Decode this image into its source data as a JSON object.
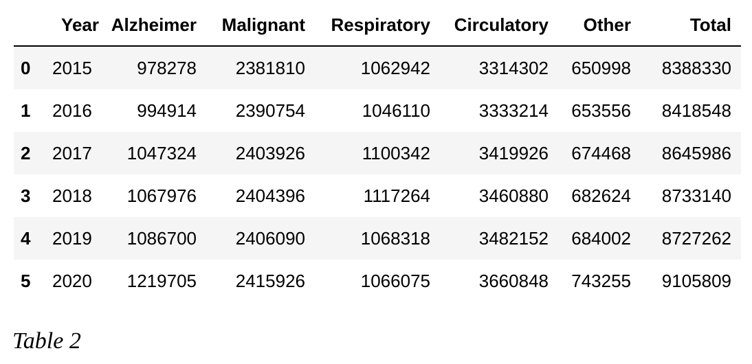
{
  "table": {
    "columns": [
      "",
      "Year",
      "Alzheimer",
      "Malignant",
      "Respiratory",
      "Circulatory",
      "Other",
      "Total"
    ],
    "rows": [
      {
        "index": "0",
        "year": "2015",
        "alzheimer": "978278",
        "malignant": "2381810",
        "respiratory": "1062942",
        "circulatory": "3314302",
        "other": "650998",
        "total": "8388330"
      },
      {
        "index": "1",
        "year": "2016",
        "alzheimer": "994914",
        "malignant": "2390754",
        "respiratory": "1046110",
        "circulatory": "3333214",
        "other": "653556",
        "total": "8418548"
      },
      {
        "index": "2",
        "year": "2017",
        "alzheimer": "1047324",
        "malignant": "2403926",
        "respiratory": "1100342",
        "circulatory": "3419926",
        "other": "674468",
        "total": "8645986"
      },
      {
        "index": "3",
        "year": "2018",
        "alzheimer": "1067976",
        "malignant": "2404396",
        "respiratory": "1117264",
        "circulatory": "3460880",
        "other": "682624",
        "total": "8733140"
      },
      {
        "index": "4",
        "year": "2019",
        "alzheimer": "1086700",
        "malignant": "2406090",
        "respiratory": "1068318",
        "circulatory": "3482152",
        "other": "684002",
        "total": "8727262"
      },
      {
        "index": "5",
        "year": "2020",
        "alzheimer": "1219705",
        "malignant": "2415926",
        "respiratory": "1066075",
        "circulatory": "3660848",
        "other": "743255",
        "total": "9105809"
      }
    ]
  },
  "caption": "Table 2"
}
